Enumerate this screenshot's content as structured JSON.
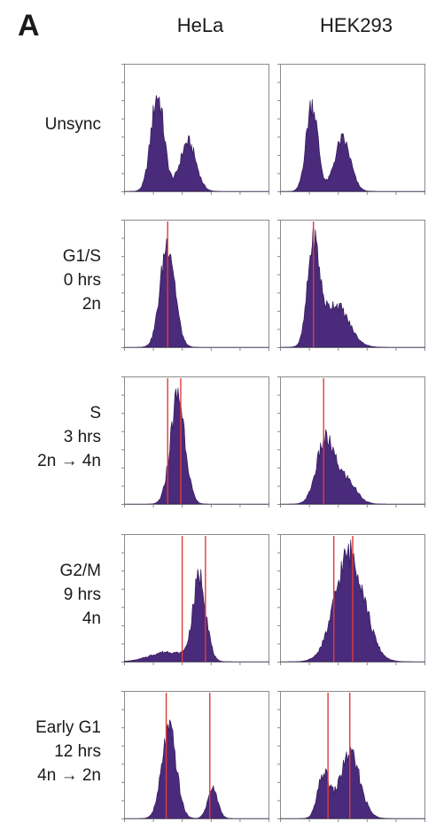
{
  "panel_label": "A",
  "columns": [
    "HeLa",
    "HEK293"
  ],
  "rows": [
    {
      "lines": [
        "Unsync"
      ]
    },
    {
      "lines": [
        "G1/S",
        "0 hrs",
        "2n"
      ]
    },
    {
      "lines": [
        "S",
        "3 hrs",
        "2n → 4n"
      ]
    },
    {
      "lines": [
        "G2/M",
        "9 hrs",
        "4n"
      ]
    },
    {
      "lines": [
        "Early G1",
        "12 hrs",
        "4n → 2n"
      ]
    }
  ],
  "colors": {
    "histogram_fill": "#4a2a7a",
    "marker_line": "#e23a3a",
    "frame": "#8a8a8a"
  },
  "chart_data": {
    "type": "area",
    "description": "Flow cytometry DNA content histograms (propidium iodide), 5 cell-cycle stages x 2 cell lines",
    "x_range": [
      0,
      1000
    ],
    "y_range": [
      0,
      100
    ],
    "panels": [
      {
        "row": 0,
        "column": "HeLa",
        "peaks": [
          {
            "x": 230,
            "h": 78,
            "w": 45
          },
          {
            "x": 440,
            "h": 40,
            "w": 55
          }
        ],
        "markers": []
      },
      {
        "row": 0,
        "column": "HEK293",
        "peaks": [
          {
            "x": 220,
            "h": 72,
            "w": 40
          },
          {
            "x": 430,
            "h": 42,
            "w": 55
          }
        ],
        "markers": []
      },
      {
        "row": 1,
        "column": "HeLa",
        "peaks": [
          {
            "x": 300,
            "h": 85,
            "w": 50
          }
        ],
        "markers": [
          300
        ]
      },
      {
        "row": 1,
        "column": "HEK293",
        "peaks": [
          {
            "x": 230,
            "h": 80,
            "w": 40
          },
          {
            "x": 380,
            "h": 35,
            "w": 90
          }
        ],
        "markers": [
          230
        ]
      },
      {
        "row": 2,
        "column": "HeLa",
        "peaks": [
          {
            "x": 370,
            "h": 88,
            "w": 50
          }
        ],
        "markers": [
          300,
          390
        ]
      },
      {
        "row": 2,
        "column": "HEK293",
        "peaks": [
          {
            "x": 310,
            "h": 50,
            "w": 60
          },
          {
            "x": 450,
            "h": 20,
            "w": 70
          }
        ],
        "markers": [
          300
        ]
      },
      {
        "row": 3,
        "column": "HeLa",
        "peaks": [
          {
            "x": 520,
            "h": 68,
            "w": 45
          },
          {
            "x": 300,
            "h": 8,
            "w": 120
          }
        ],
        "markers": [
          400,
          560
        ]
      },
      {
        "row": 3,
        "column": "HEK293",
        "peaks": [
          {
            "x": 480,
            "h": 88,
            "w": 100
          }
        ],
        "markers": [
          370,
          500
        ]
      },
      {
        "row": 4,
        "column": "HeLa",
        "peaks": [
          {
            "x": 310,
            "h": 72,
            "w": 50
          },
          {
            "x": 610,
            "h": 24,
            "w": 35
          }
        ],
        "markers": [
          290,
          590
        ]
      },
      {
        "row": 4,
        "column": "HEK293",
        "peaks": [
          {
            "x": 300,
            "h": 35,
            "w": 40
          },
          {
            "x": 480,
            "h": 52,
            "w": 70
          }
        ],
        "markers": [
          330,
          480
        ]
      }
    ]
  }
}
